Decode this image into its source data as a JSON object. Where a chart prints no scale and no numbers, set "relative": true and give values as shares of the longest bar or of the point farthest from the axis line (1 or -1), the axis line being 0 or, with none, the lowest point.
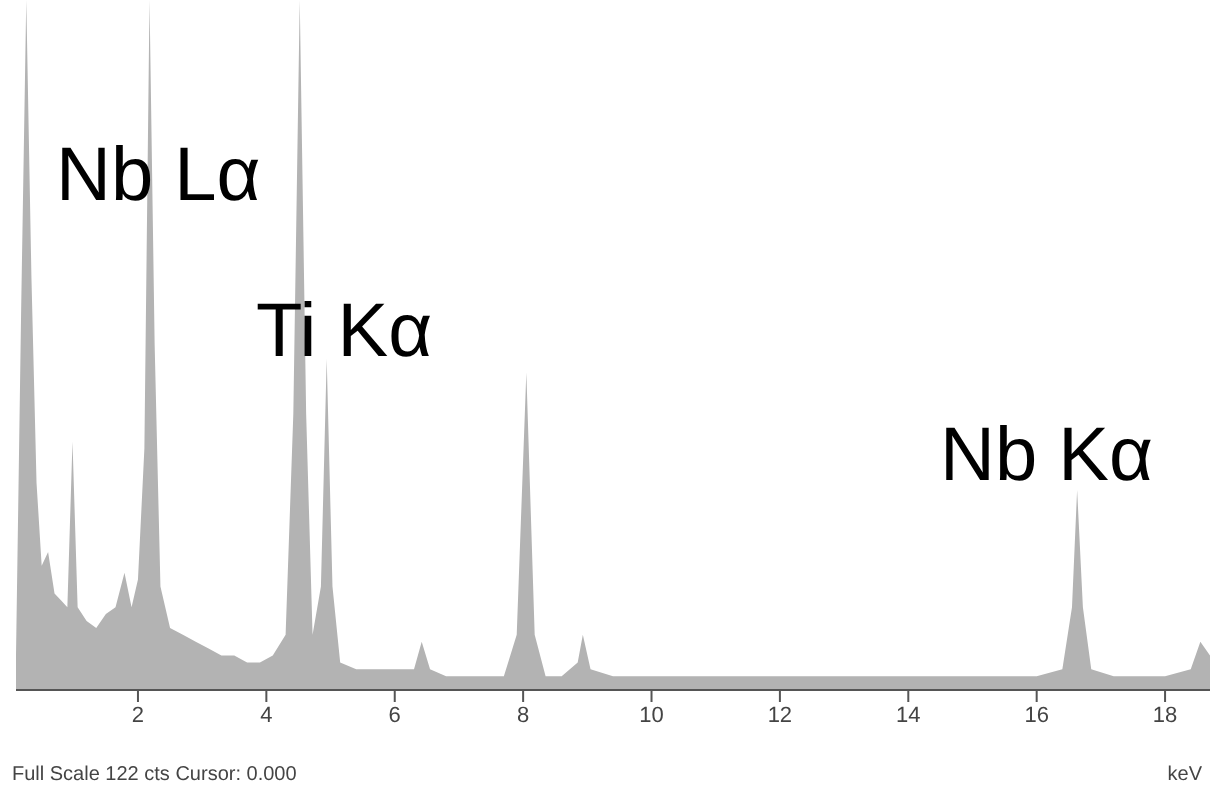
{
  "chart_data": {
    "type": "area",
    "relative": true,
    "xlabel": "keV",
    "color": "#b3b3b3",
    "x": [
      0.1,
      0.18,
      0.26,
      0.34,
      0.42,
      0.5,
      0.6,
      0.7,
      0.8,
      0.9,
      0.98,
      1.06,
      1.2,
      1.35,
      1.5,
      1.65,
      1.79,
      1.9,
      2.0,
      2.1,
      2.18,
      2.26,
      2.35,
      2.5,
      2.7,
      2.9,
      3.1,
      3.3,
      3.5,
      3.7,
      3.9,
      4.1,
      4.3,
      4.42,
      4.52,
      4.62,
      4.72,
      4.85,
      4.94,
      5.03,
      5.15,
      5.4,
      5.7,
      6.0,
      6.3,
      6.42,
      6.55,
      6.8,
      7.1,
      7.4,
      7.7,
      7.9,
      8.05,
      8.18,
      8.35,
      8.6,
      8.85,
      8.93,
      9.05,
      9.4,
      10,
      10.5,
      11,
      11.5,
      12,
      12.5,
      13,
      13.5,
      14,
      14.5,
      15,
      15.5,
      16,
      16.4,
      16.55,
      16.63,
      16.72,
      16.85,
      17.2,
      17.6,
      18.0,
      18.4,
      18.55,
      18.7
    ],
    "values": [
      0.05,
      0.55,
      1,
      0.6,
      0.3,
      0.18,
      0.2,
      0.14,
      0.13,
      0.12,
      0.36,
      0.12,
      0.1,
      0.09,
      0.11,
      0.12,
      0.17,
      0.12,
      0.16,
      0.35,
      1,
      0.5,
      0.15,
      0.09,
      0.08,
      0.07,
      0.06,
      0.05,
      0.05,
      0.04,
      0.04,
      0.05,
      0.08,
      0.4,
      1,
      0.4,
      0.08,
      0.15,
      0.48,
      0.15,
      0.04,
      0.03,
      0.03,
      0.03,
      0.03,
      0.07,
      0.03,
      0.02,
      0.02,
      0.02,
      0.02,
      0.08,
      0.46,
      0.08,
      0.02,
      0.02,
      0.04,
      0.08,
      0.03,
      0.02,
      0.02,
      0.02,
      0.02,
      0.02,
      0.02,
      0.02,
      0.02,
      0.02,
      0.02,
      0.02,
      0.02,
      0.02,
      0.02,
      0.03,
      0.12,
      0.29,
      0.12,
      0.03,
      0.02,
      0.02,
      0.02,
      0.03,
      0.07,
      0.05
    ],
    "xlim": [
      0.1,
      18.7
    ],
    "xticks": [
      2,
      4,
      6,
      8,
      10,
      12,
      14,
      16,
      18
    ],
    "annotations": [
      "Nb Lα",
      "Ti Kα",
      "Nb Kα",
      "Full Scale 122 cts Cursor: 0.000"
    ]
  }
}
